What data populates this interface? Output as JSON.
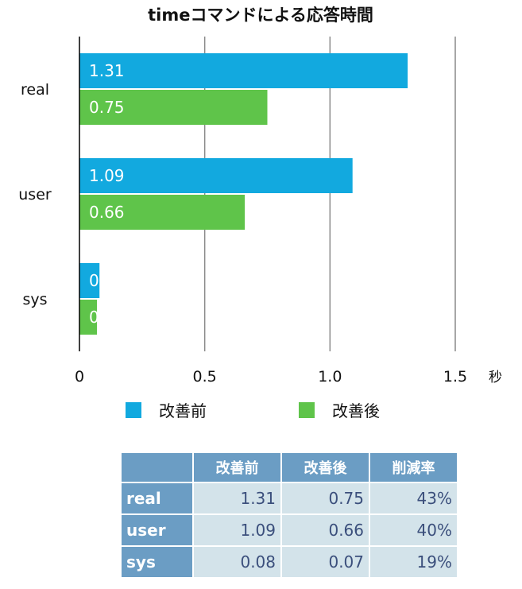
{
  "chart_data": {
    "type": "bar",
    "orientation": "horizontal",
    "title": "timeコマンドによる応答時間",
    "unit": "秒",
    "categories": [
      "real",
      "user",
      "sys"
    ],
    "series": [
      {
        "name": "改善前",
        "color": "#12a9df",
        "values": [
          1.31,
          1.09,
          0.08
        ]
      },
      {
        "name": "改善後",
        "color": "#5fc44a",
        "values": [
          0.75,
          0.66,
          0.07
        ]
      }
    ],
    "xlim": [
      0,
      1.5
    ],
    "xticks": [
      "0",
      "0.5",
      "1.0",
      "1.5"
    ],
    "grid": true,
    "legend": "bottom"
  },
  "table": {
    "headers": [
      "",
      "改善前",
      "改善後",
      "削減率"
    ],
    "rows": [
      {
        "label": "real",
        "before": "1.31",
        "after": "0.75",
        "rate": "43%"
      },
      {
        "label": "user",
        "before": "1.09",
        "after": "0.66",
        "rate": "40%"
      },
      {
        "label": "sys",
        "before": "0.08",
        "after": "0.07",
        "rate": "19%"
      }
    ]
  }
}
